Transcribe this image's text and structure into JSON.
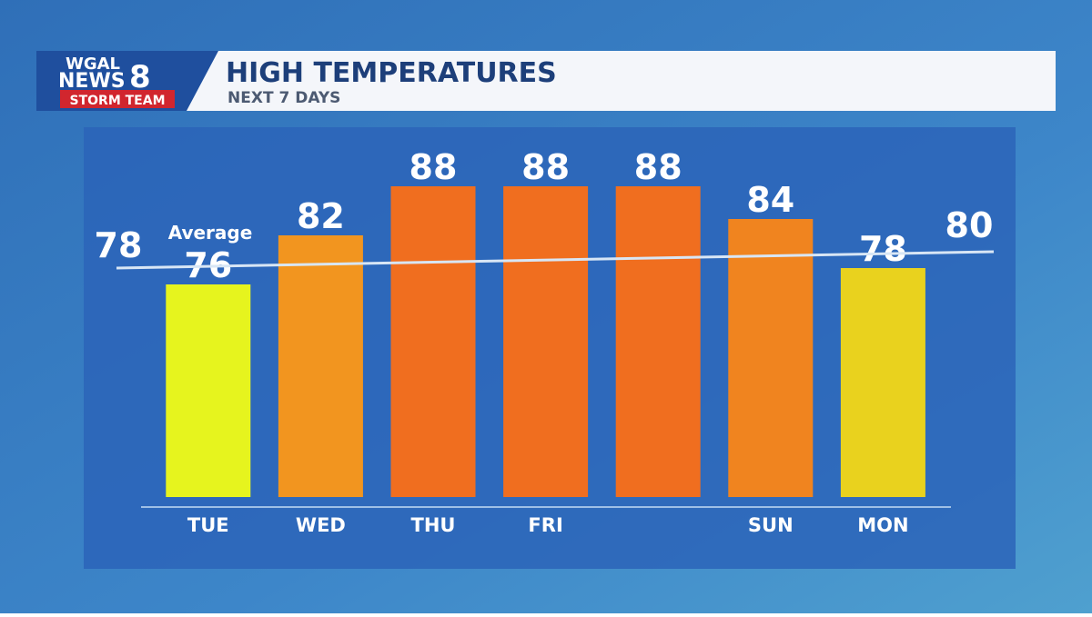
{
  "header": {
    "logo_top": "WGAL",
    "logo_news": "NEWS",
    "logo_num": "8",
    "logo_team": "STORM TEAM",
    "title": "HIGH TEMPERATURES",
    "subtitle": "NEXT 7 DAYS"
  },
  "chart_data": {
    "type": "bar",
    "categories": [
      "TUE",
      "WED",
      "THU",
      "FRI",
      null,
      "SUN",
      "MON"
    ],
    "values": [
      76,
      82,
      88,
      88,
      88,
      84,
      78
    ],
    "colors": [
      "#e6f41e",
      "#f2951f",
      "#f06e1f",
      "#f06e1f",
      "#f06e1f",
      "#f0841f",
      "#e9d21e"
    ],
    "ylim": [
      50,
      95
    ],
    "average": {
      "label": "Average",
      "start": 78,
      "end": 80
    }
  }
}
